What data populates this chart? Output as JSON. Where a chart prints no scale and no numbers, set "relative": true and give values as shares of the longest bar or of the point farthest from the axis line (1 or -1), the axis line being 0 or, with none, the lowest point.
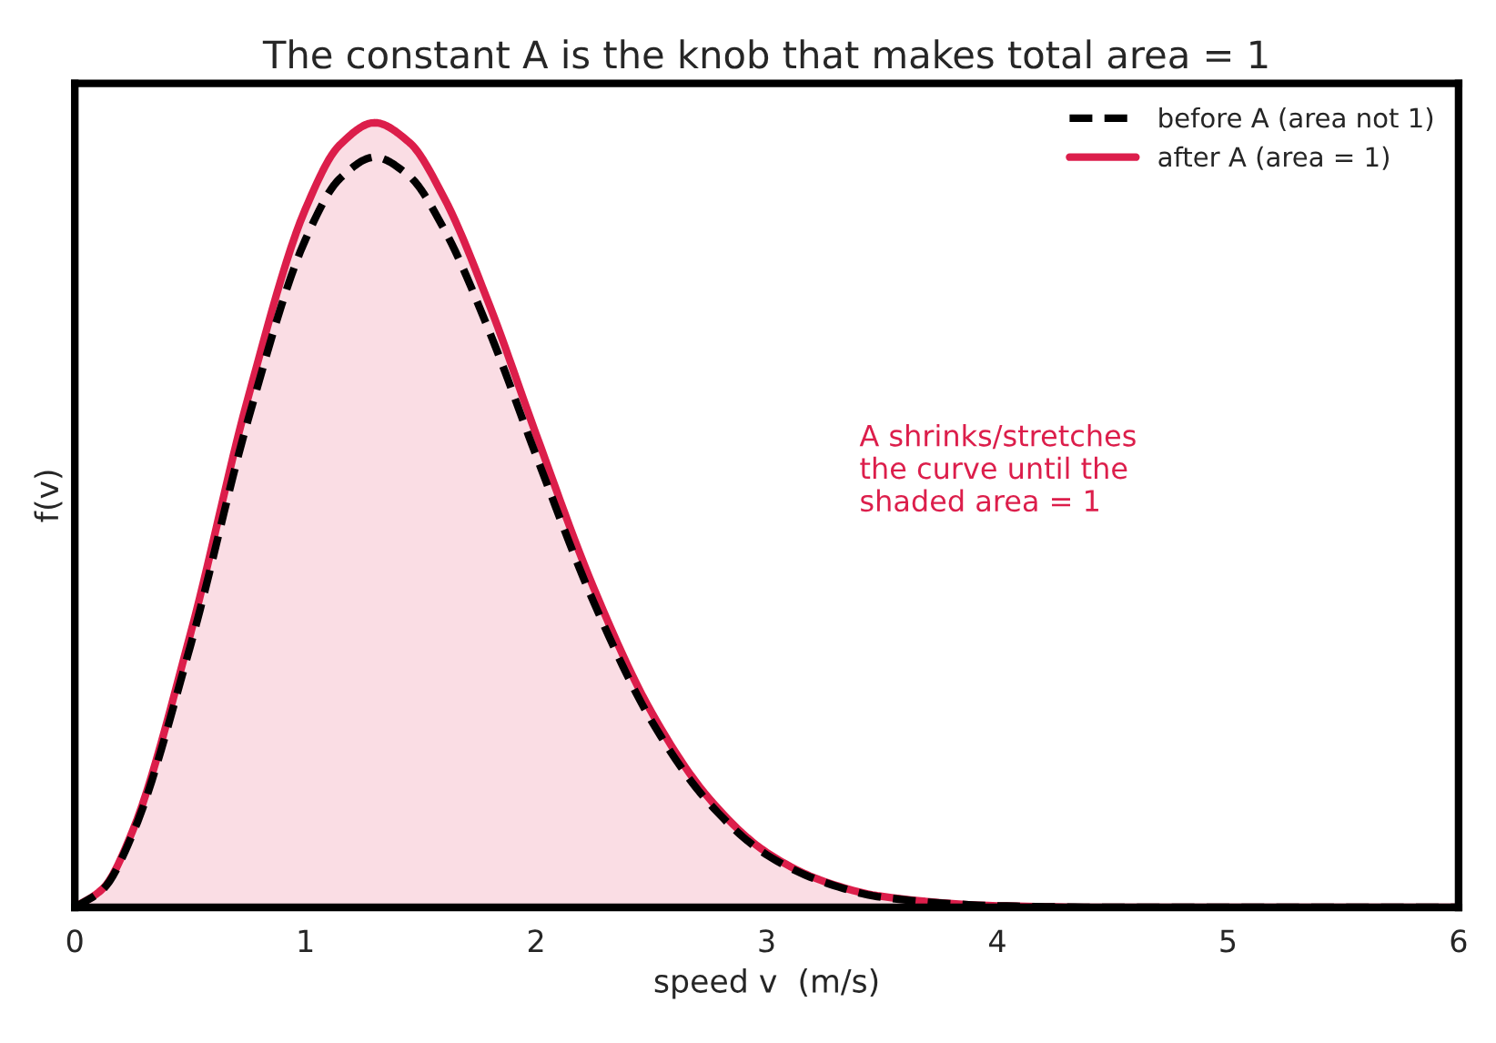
{
  "chart_data": {
    "type": "line",
    "title": "The constant A is the knob that makes total area = 1",
    "xlabel": "speed v  (m/s)",
    "ylabel": "f(v)",
    "relative": true,
    "xlim": [
      0,
      6
    ],
    "xticks": [
      0,
      1,
      2,
      3,
      4,
      5,
      6
    ],
    "legend": "top right",
    "grid": false,
    "series": [
      {
        "name": "before A (area not 1)",
        "line_style": "dashed",
        "color": "#000000",
        "x": [
          0,
          0.125,
          0.25,
          0.5,
          0.75,
          1.0,
          1.15,
          1.3,
          1.45,
          1.6,
          1.8,
          2.0,
          2.25,
          2.5,
          2.75,
          3.0,
          3.25,
          3.5,
          4.0,
          4.5,
          5.0,
          6.0
        ],
        "values": [
          0,
          0.024,
          0.093,
          0.332,
          0.62,
          0.851,
          0.929,
          0.956,
          0.932,
          0.865,
          0.732,
          0.576,
          0.389,
          0.238,
          0.133,
          0.067,
          0.032,
          0.013,
          0.002,
          0,
          0,
          0
        ]
      },
      {
        "name": "after A (area = 1)",
        "type": "area",
        "line_style": "solid",
        "color": "#dc1e4b",
        "x": [
          0,
          0.125,
          0.25,
          0.5,
          0.75,
          1.0,
          1.15,
          1.3,
          1.45,
          1.6,
          1.8,
          2.0,
          2.25,
          2.5,
          2.75,
          3.0,
          3.25,
          3.5,
          4.0,
          4.5,
          5.0,
          6.0
        ],
        "values": [
          0,
          0.025,
          0.097,
          0.347,
          0.648,
          0.89,
          0.972,
          1.0,
          0.975,
          0.905,
          0.766,
          0.603,
          0.407,
          0.249,
          0.139,
          0.07,
          0.033,
          0.014,
          0.002,
          0,
          0,
          0
        ]
      }
    ],
    "annotations": [
      "A shrinks/stretches\nthe curve until the\nshaded area = 1"
    ]
  }
}
